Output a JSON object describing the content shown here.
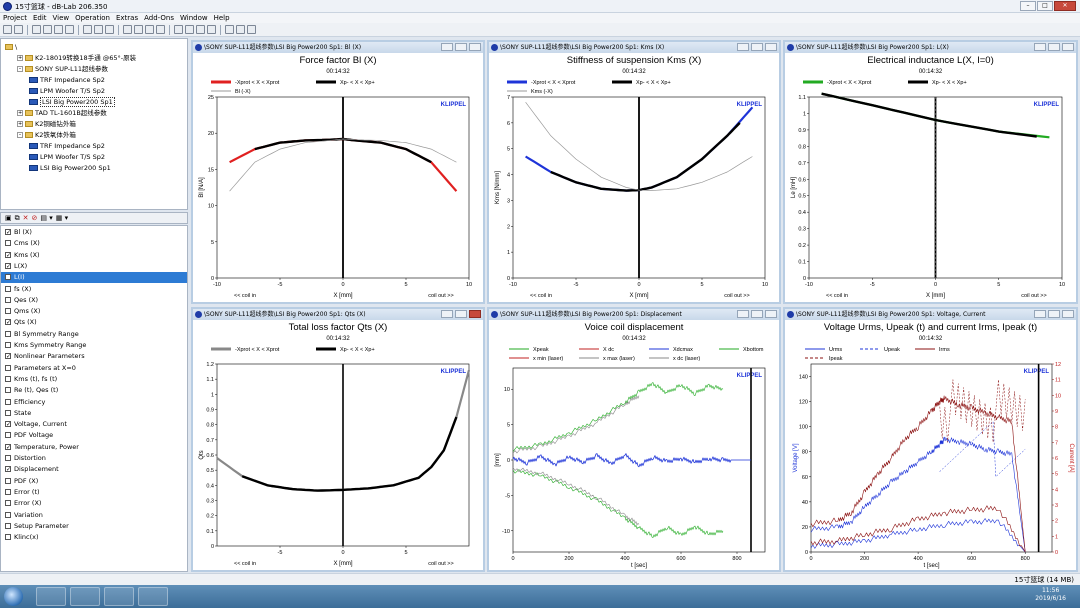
{
  "app": {
    "title": "15寸篮球 - dB-Lab 206.350"
  },
  "menu": [
    "Project",
    "Edit",
    "View",
    "Operation",
    "Extras",
    "Add-Ons",
    "Window",
    "Help"
  ],
  "tree": [
    {
      "label": "\\",
      "indent": 0,
      "kind": "folder",
      "exp": ""
    },
    {
      "label": "K2-18019转换18手通 @65°-原装",
      "indent": 1,
      "kind": "folder",
      "exp": "+"
    },
    {
      "label": "SONY SUP-L11超线参数",
      "indent": 1,
      "kind": "folder",
      "exp": "-"
    },
    {
      "label": "TRF Impedance Sp2",
      "indent": 2,
      "kind": "doc",
      "exp": ""
    },
    {
      "label": "LPM Woofer T/S Sp2",
      "indent": 2,
      "kind": "doc",
      "exp": ""
    },
    {
      "label": "LSI Big Power200 Sp1",
      "indent": 2,
      "kind": "doc",
      "exp": "",
      "selected": true
    },
    {
      "label": "TAD TL-1601B超线参数",
      "indent": 1,
      "kind": "folder",
      "exp": "+"
    },
    {
      "label": "K2铜磁钻外箱",
      "indent": 1,
      "kind": "folder",
      "exp": "+"
    },
    {
      "label": "K2铁氧体外箱",
      "indent": 1,
      "kind": "folder",
      "exp": "-"
    },
    {
      "label": "TRF Impedance Sp2",
      "indent": 2,
      "kind": "doc",
      "exp": ""
    },
    {
      "label": "LPM Woofer T/S Sp2",
      "indent": 2,
      "kind": "doc",
      "exp": ""
    },
    {
      "label": "LSI Big Power200 Sp1",
      "indent": 2,
      "kind": "doc",
      "exp": ""
    }
  ],
  "params": [
    {
      "label": "Bl (X)",
      "checked": true
    },
    {
      "label": "Cms (X)",
      "checked": false
    },
    {
      "label": "Kms (X)",
      "checked": true
    },
    {
      "label": "L(X)",
      "checked": true
    },
    {
      "label": "L(I)",
      "checked": false,
      "highlight": true
    },
    {
      "label": "fs (X)",
      "checked": false
    },
    {
      "label": "Qes (X)",
      "checked": false
    },
    {
      "label": "Qms (X)",
      "checked": false
    },
    {
      "label": "Qts (X)",
      "checked": true
    },
    {
      "label": "Bl Symmetry Range",
      "checked": false
    },
    {
      "label": "Kms Symmetry Range",
      "checked": false
    },
    {
      "label": "Nonlinear Parameters",
      "checked": true
    },
    {
      "label": "Parameters at X=0",
      "checked": false
    },
    {
      "label": "Kms (t), fs (t)",
      "checked": false
    },
    {
      "label": "Re (t), Qes (t)",
      "checked": false
    },
    {
      "label": "Efficiency",
      "checked": false
    },
    {
      "label": "State",
      "checked": false
    },
    {
      "label": "Voltage, Current",
      "checked": true
    },
    {
      "label": "PDF Voltage",
      "checked": false
    },
    {
      "label": "Temperature, Power",
      "checked": true
    },
    {
      "label": "Distortion",
      "checked": false
    },
    {
      "label": "Displacement",
      "checked": true
    },
    {
      "label": "PDF (X)",
      "checked": false
    },
    {
      "label": "Error (t)",
      "checked": false
    },
    {
      "label": "Error (X)",
      "checked": false
    },
    {
      "label": "Variation",
      "checked": false
    },
    {
      "label": "Setup Parameter",
      "checked": false
    },
    {
      "label": "Klinc(x)",
      "checked": false
    }
  ],
  "status": {
    "text": "15寸篮球 (14 MB)"
  },
  "taskbar": {
    "time": "11:56",
    "date": "2019/6/16"
  },
  "chart_data": [
    {
      "type": "line",
      "window_title": "\\SONY SUP-L11超线参数\\LSI Big Power200 Sp1: Bl (X)",
      "title": "Force factor Bl (X)",
      "subtitle": "00:14:32",
      "brand": "KLIPPEL",
      "xlabel": "X [mm]",
      "ylabel": "Bl [N/A]",
      "xlim": [
        -10,
        10
      ],
      "ylim": [
        0,
        25
      ],
      "xticks": [
        -10,
        -5,
        0,
        5,
        10
      ],
      "yticks": [
        0,
        5,
        10,
        15,
        20,
        25
      ],
      "note_left": "<< coil in",
      "note_right": "coil out >>",
      "legend": [
        {
          "label": "-Xprot < X < Xprot",
          "color": "#e02020",
          "style": "thick"
        },
        {
          "label": "Xp- < X < Xp+",
          "color": "#000000",
          "style": "thick"
        },
        {
          "label": "Bl (-X)",
          "color": "#999999",
          "style": "thin"
        }
      ],
      "series": [
        {
          "color": "#e02020",
          "w": 2.2,
          "x": [
            -9,
            -7,
            -5,
            -3,
            -1,
            0,
            1,
            3,
            5,
            7,
            9
          ],
          "y": [
            16,
            17.8,
            18.7,
            19,
            19.1,
            19.2,
            19,
            18.7,
            17.8,
            16,
            12
          ]
        },
        {
          "color": "#000000",
          "w": 2.4,
          "x": [
            -7,
            -5,
            -3,
            -1,
            0,
            1,
            3,
            5,
            7
          ],
          "y": [
            17.8,
            18.7,
            19,
            19.1,
            19.2,
            19,
            18.7,
            17.8,
            16
          ]
        },
        {
          "color": "#999999",
          "w": 0.7,
          "x": [
            -9,
            -7,
            -5,
            -3,
            -1,
            0,
            1,
            3,
            5,
            7,
            9
          ],
          "y": [
            12,
            16,
            17.8,
            18.7,
            19,
            19.2,
            19.1,
            19,
            18.7,
            17.8,
            16
          ]
        }
      ]
    },
    {
      "type": "line",
      "window_title": "\\SONY SUP-L11超线参数\\LSI Big Power200 Sp1: Kms (X)",
      "title": "Stiffness of suspension Kms (X)",
      "subtitle": "00:14:32",
      "brand": "KLIPPEL",
      "xlabel": "X [mm]",
      "ylabel": "Kms [N/mm]",
      "xlim": [
        -10,
        10
      ],
      "ylim": [
        0,
        7
      ],
      "xticks": [
        -10,
        -5,
        0,
        5,
        10
      ],
      "yticks": [
        0,
        1,
        2,
        3,
        4,
        5,
        6,
        7
      ],
      "note_left": "<< coil in",
      "note_right": "coil out >>",
      "legend": [
        {
          "label": "-Xprot < X < Xprot",
          "color": "#1e34d8",
          "style": "thick"
        },
        {
          "label": "Xp- < X < Xp+",
          "color": "#000000",
          "style": "thick"
        },
        {
          "label": "Kms (-X)",
          "color": "#999999",
          "style": "thin"
        }
      ],
      "series": [
        {
          "color": "#1e34d8",
          "w": 2.2,
          "x": [
            -9,
            -7,
            -5,
            -3,
            -1,
            0,
            1,
            3,
            5,
            7,
            9
          ],
          "y": [
            4.7,
            4.1,
            3.7,
            3.45,
            3.38,
            3.4,
            3.5,
            3.9,
            4.6,
            5.5,
            6.6
          ]
        },
        {
          "color": "#000000",
          "w": 2.4,
          "x": [
            -7,
            -5,
            -3,
            -1,
            0,
            1,
            3,
            5,
            7,
            8
          ],
          "y": [
            4.1,
            3.7,
            3.45,
            3.38,
            3.4,
            3.5,
            3.9,
            4.6,
            5.5,
            6.0
          ]
        },
        {
          "color": "#999999",
          "w": 0.7,
          "x": [
            -9,
            -7,
            -5,
            -3,
            -1,
            0,
            1,
            3,
            5,
            7,
            9
          ],
          "y": [
            6.8,
            5.5,
            4.6,
            3.9,
            3.5,
            3.4,
            3.38,
            3.45,
            3.7,
            4.1,
            4.7
          ]
        }
      ]
    },
    {
      "type": "line",
      "window_title": "\\SONY SUP-L11超线参数\\LSI Big Power200 Sp1: L(X)",
      "title": "Electrical inductance L(X, I=0)",
      "subtitle": "00:14:32",
      "brand": "KLIPPEL",
      "xlabel": "X [mm]",
      "ylabel": "Le [mH]",
      "xlim": [
        -10,
        10
      ],
      "ylim": [
        0,
        1.1
      ],
      "xticks": [
        -10,
        -5,
        0,
        5,
        10
      ],
      "yticks": [
        0,
        0.1,
        0.2,
        0.3,
        0.4,
        0.5,
        0.6,
        0.7,
        0.8,
        0.9,
        1.0,
        1.1
      ],
      "note_left": "<< coil in",
      "note_right": "coil out >>",
      "legend": [
        {
          "label": "-Xprot < X < Xprot",
          "color": "#22aa22",
          "style": "thick"
        },
        {
          "label": "Xp- < X < Xp+",
          "color": "#000000",
          "style": "thick"
        }
      ],
      "series": [
        {
          "color": "#22aa22",
          "w": 2.2,
          "x": [
            -9,
            -5,
            0,
            5,
            9
          ],
          "y": [
            1.12,
            1.05,
            0.96,
            0.89,
            0.855
          ]
        },
        {
          "color": "#000000",
          "w": 2.4,
          "x": [
            -9,
            -5,
            0,
            5,
            8
          ],
          "y": [
            1.12,
            1.05,
            0.96,
            0.89,
            0.86
          ]
        }
      ]
    },
    {
      "type": "line",
      "window_title": "\\SONY SUP-L11超线参数\\LSI Big Power200 Sp1: Qts (X)",
      "title": "Total loss factor Qts (X)",
      "subtitle": "00:14:32",
      "brand": "KLIPPEL",
      "xlabel": "X [mm]",
      "ylabel": "Qts",
      "xlim": [
        -10,
        10
      ],
      "ylim": [
        0,
        1.2
      ],
      "xticks": [
        -5,
        0,
        5
      ],
      "yticks": [
        0,
        0.1,
        0.2,
        0.3,
        0.4,
        0.5,
        0.6,
        0.7,
        0.8,
        0.9,
        1.0,
        1.1,
        1.2
      ],
      "note_left": "<< coil in",
      "note_right": "coil out >>",
      "legend": [
        {
          "label": "-Xprot < X < Xprot",
          "color": "#888888",
          "style": "thick"
        },
        {
          "label": "Xp- < X < Xp+",
          "color": "#000000",
          "style": "thick"
        }
      ],
      "series": [
        {
          "color": "#888888",
          "w": 2.2,
          "x": [
            -10,
            -8,
            -6,
            -4,
            -2,
            0,
            2,
            4,
            6,
            7,
            8,
            9,
            10
          ],
          "y": [
            0.58,
            0.46,
            0.4,
            0.375,
            0.365,
            0.37,
            0.38,
            0.4,
            0.45,
            0.52,
            0.63,
            0.85,
            1.16
          ]
        },
        {
          "color": "#000000",
          "w": 2.4,
          "x": [
            -8,
            -6,
            -4,
            -2,
            0,
            2,
            4,
            6,
            7,
            8,
            9
          ],
          "y": [
            0.46,
            0.4,
            0.375,
            0.365,
            0.37,
            0.38,
            0.4,
            0.45,
            0.52,
            0.63,
            0.85
          ]
        }
      ]
    },
    {
      "type": "line",
      "window_title": "\\SONY SUP-L11超线参数\\LSI Big Power200 Sp1: Displacement",
      "title": "Voice coil displacement",
      "subtitle": "00:14:32",
      "brand": "KLIPPEL",
      "xlabel": "t [sec]",
      "ylabel": "[mm]",
      "xlim": [
        0,
        900
      ],
      "ylim": [
        -13,
        13
      ],
      "xticks": [
        0,
        200,
        400,
        600,
        800
      ],
      "yticks": [
        -10,
        -5,
        0,
        5,
        10
      ],
      "legend": [
        {
          "label": "Xpeak",
          "color": "#22aa22",
          "style": "thin"
        },
        {
          "label": "X dc",
          "color": "#c02020",
          "style": "thin"
        },
        {
          "label": "Xdcmax",
          "color": "#1e34d8",
          "style": "thin"
        },
        {
          "label": "Xbottom",
          "color": "#22aa22",
          "style": "thin"
        },
        {
          "label": "x min (laser)",
          "color": "#c02020",
          "style": "thin"
        },
        {
          "label": "x max (laser)",
          "color": "#888888",
          "style": "thin"
        },
        {
          "label": "x dc (laser)",
          "color": "#888888",
          "style": "thin"
        }
      ],
      "series": [
        {
          "color": "#22aa22",
          "w": 0.6,
          "x": [
            0,
            100,
            200,
            300,
            400,
            450,
            500,
            550,
            600,
            650,
            700,
            750
          ],
          "y": [
            1.5,
            2.2,
            3.8,
            5.7,
            8.2,
            9.6,
            10.8,
            9.5,
            10.6,
            9.4,
            10.5,
            10
          ]
        },
        {
          "color": "#22aa22",
          "w": 0.6,
          "x": [
            0,
            100,
            200,
            300,
            400,
            450,
            500,
            550,
            600,
            650,
            700,
            750
          ],
          "y": [
            -1.5,
            -2.2,
            -3.8,
            -5.7,
            -8.2,
            -9.6,
            -10.8,
            -9.5,
            -10.6,
            -9.4,
            -10.5,
            -10
          ]
        },
        {
          "color": "#888888",
          "w": 0.6,
          "x": [
            0,
            100,
            200,
            300,
            400,
            450
          ],
          "y": [
            1.2,
            1.9,
            3.4,
            5.3,
            7.9,
            9.1
          ]
        },
        {
          "color": "#888888",
          "w": 0.6,
          "x": [
            0,
            100,
            200,
            300,
            400,
            450
          ],
          "y": [
            -1.2,
            -1.9,
            -3.4,
            -5.3,
            -7.9,
            -9.1
          ]
        },
        {
          "color": "#1e34d8",
          "w": 0.8,
          "x": [
            0,
            50,
            100,
            150,
            200,
            250,
            300,
            350,
            400,
            450,
            500,
            550,
            600,
            650,
            700,
            750,
            800,
            850
          ],
          "y": [
            0.3,
            -0.4,
            0.5,
            -0.6,
            0.4,
            -0.3,
            0.6,
            -0.5,
            0.7,
            -0.8,
            0.4,
            -0.2,
            0.2,
            -0.3,
            0.2,
            0,
            0,
            0
          ]
        }
      ]
    },
    {
      "type": "line",
      "window_title": "\\SONY SUP-L11超线参数\\LSI Big Power200 Sp1: Voltage, Current",
      "title": "Voltage Urms, Upeak (t) and current Irms, Ipeak (t)",
      "subtitle": "00:14:32",
      "brand": "KLIPPEL",
      "xlabel": "t [sec]",
      "ylabel": "Voltage [V]",
      "y2label": "Current [A]",
      "xlim": [
        0,
        900
      ],
      "ylim": [
        0,
        150
      ],
      "y2lim": [
        0,
        12
      ],
      "xticks": [
        0,
        200,
        400,
        600,
        800
      ],
      "yticks": [
        0,
        20,
        40,
        60,
        80,
        100,
        120,
        140
      ],
      "y2ticks": [
        0,
        1,
        2,
        3,
        4,
        5,
        6,
        7,
        8,
        9,
        10,
        11,
        12
      ],
      "legend": [
        {
          "label": "Urms",
          "color": "#1e34d8",
          "style": "thin"
        },
        {
          "label": "Upeak",
          "color": "#1e34d8",
          "style": "dash"
        },
        {
          "label": "Irms",
          "color": "#8b1010",
          "style": "thin"
        },
        {
          "label": "Ipeak",
          "color": "#8b1010",
          "style": "dash"
        }
      ],
      "series": [
        {
          "color": "#1e34d8",
          "w": 0.6,
          "axis": "left",
          "x": [
            0,
            100,
            150,
            200,
            250,
            300,
            350,
            400,
            450,
            480,
            500,
            550,
            600,
            650,
            700,
            750,
            800
          ],
          "y": [
            18,
            20,
            24,
            36,
            46,
            56,
            64,
            72,
            80,
            86,
            90,
            88,
            86,
            82,
            80,
            78,
            0
          ]
        },
        {
          "color": "#8b1010",
          "w": 0.6,
          "axis": "right",
          "x": [
            0,
            100,
            150,
            200,
            250,
            300,
            350,
            400,
            450,
            480,
            500,
            550,
            600,
            650,
            700,
            750,
            800
          ],
          "y": [
            1.8,
            2.0,
            2.5,
            3.8,
            5.0,
            6.0,
            7.2,
            8.0,
            9.0,
            9.6,
            9.8,
            9.4,
            9.2,
            8.9,
            8.6,
            8.3,
            0
          ]
        },
        {
          "color": "#1e34d8",
          "w": 0.6,
          "axis": "left",
          "x": [
            0,
            100,
            200,
            300,
            400,
            500,
            600,
            700,
            800
          ],
          "y": [
            5,
            6,
            9,
            14,
            18,
            22,
            24,
            25,
            0
          ]
        },
        {
          "color": "#8b1010",
          "w": 0.6,
          "axis": "right",
          "x": [
            0,
            100,
            200,
            300,
            400,
            500,
            600,
            700,
            800
          ],
          "y": [
            0.6,
            0.7,
            1.1,
            1.5,
            2.1,
            2.5,
            2.7,
            2.8,
            0
          ]
        }
      ]
    }
  ]
}
